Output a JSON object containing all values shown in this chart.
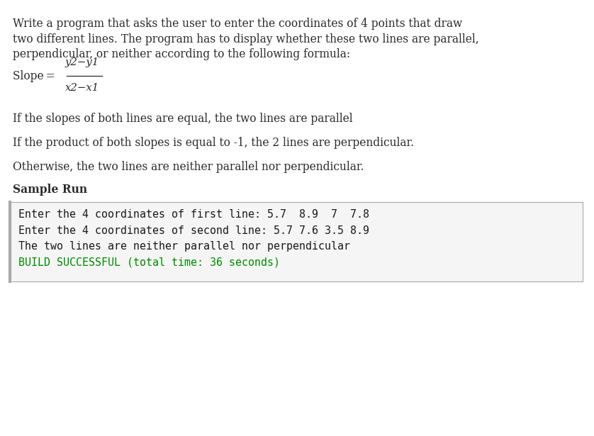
{
  "bg_color": "#ffffff",
  "text_color": "#2b2b2b",
  "para1_lines": [
    "Write a program that asks the user to enter the coordinates of 4 points that draw",
    "two different lines. The program has to display whether these two lines are parallel,",
    "perpendicular, or neither according to the following formula:"
  ],
  "slope_numerator": "y2−y1",
  "slope_denominator": "x2−x1",
  "para2": "If the slopes of both lines are equal, the two lines are parallel",
  "para3": "If the product of both slopes is equal to -1, the 2 lines are perpendicular.",
  "para4": "Otherwise, the two lines are neither parallel nor perpendicular.",
  "sample_run_label": "Sample Run",
  "console_lines": [
    "Enter the 4 coordinates of first line: 5.7  8.9  7  7.8",
    "Enter the 4 coordinates of second line: 5.7 7.6 3.5 8.9",
    "The two lines are neither parallel nor perpendicular"
  ],
  "console_success": "BUILD SUCCESSFUL (total time: 36 seconds)",
  "console_text_color": "#1a1a1a",
  "console_success_color": "#008800",
  "console_bg": "#f5f5f5",
  "console_border": "#aaaaaa",
  "body_font_size": 11.2,
  "console_font_size": 10.8,
  "sample_run_font_size": 11.2,
  "fig_width": 8.38,
  "fig_height": 6.15,
  "dpi": 100
}
